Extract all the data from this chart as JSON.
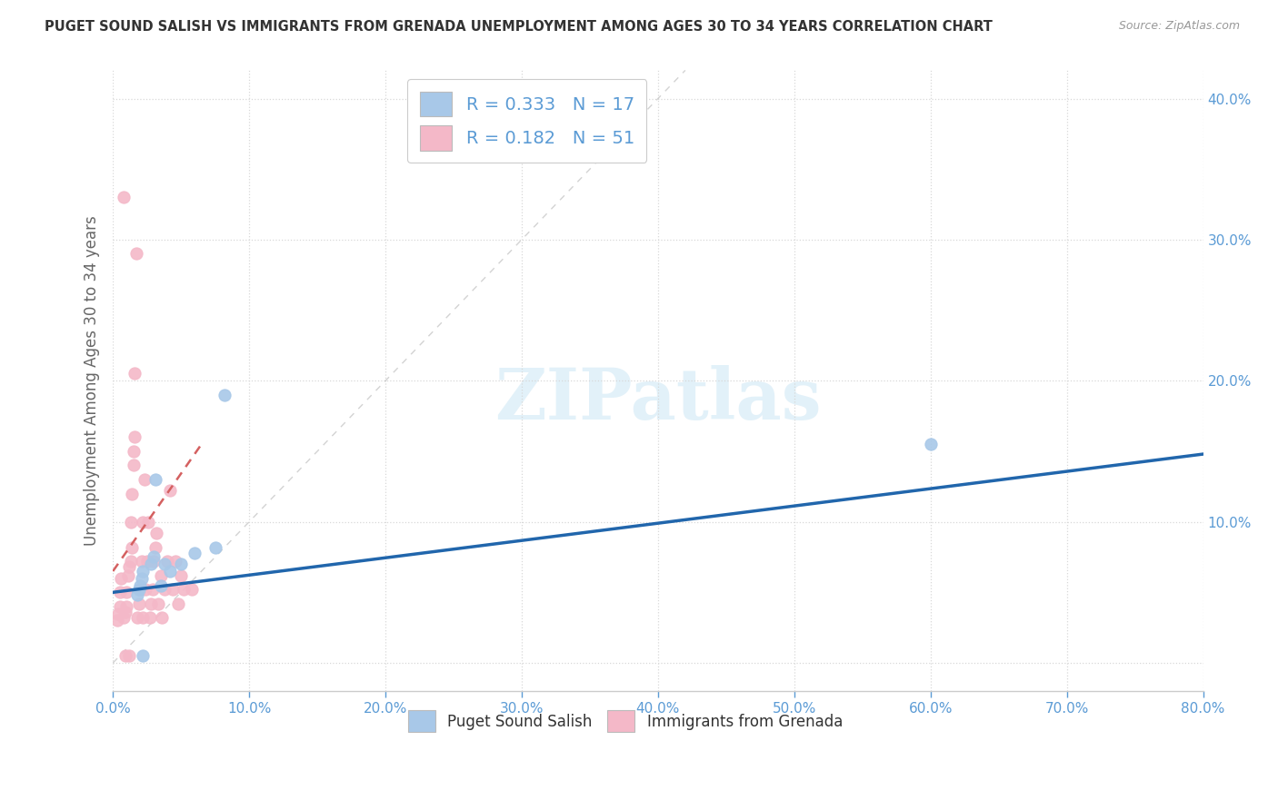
{
  "title": "PUGET SOUND SALISH VS IMMIGRANTS FROM GRENADA UNEMPLOYMENT AMONG AGES 30 TO 34 YEARS CORRELATION CHART",
  "source": "Source: ZipAtlas.com",
  "ylabel": "Unemployment Among Ages 30 to 34 years",
  "legend_labels": [
    "Puget Sound Salish",
    "Immigrants from Grenada"
  ],
  "legend_r": [
    0.333,
    0.182
  ],
  "legend_n": [
    17,
    51
  ],
  "blue_color": "#a8c8e8",
  "pink_color": "#f4b8c8",
  "blue_scatter_edge": "#a8c8e8",
  "pink_scatter_edge": "#f4b8c8",
  "blue_line_color": "#2166ac",
  "pink_line_color": "#d46060",
  "diag_color": "#c8c8c8",
  "title_color": "#333333",
  "axis_tick_color": "#5b9bd5",
  "legend_text_color": "#5b9bd5",
  "bottom_legend_text_color": "#333333",
  "watermark_color": "#d0e8f5",
  "watermark": "ZIPatlas",
  "xlim": [
    0.0,
    0.8
  ],
  "ylim": [
    -0.02,
    0.42
  ],
  "xticks": [
    0.0,
    0.1,
    0.2,
    0.3,
    0.4,
    0.5,
    0.6,
    0.7,
    0.8
  ],
  "yticks": [
    0.0,
    0.1,
    0.2,
    0.3,
    0.4
  ],
  "blue_scatter_x": [
    0.018,
    0.019,
    0.02,
    0.021,
    0.022,
    0.028,
    0.03,
    0.031,
    0.035,
    0.038,
    0.042,
    0.05,
    0.06,
    0.075,
    0.082,
    0.6,
    0.022
  ],
  "blue_scatter_y": [
    0.048,
    0.052,
    0.055,
    0.06,
    0.065,
    0.07,
    0.075,
    0.13,
    0.055,
    0.07,
    0.065,
    0.07,
    0.078,
    0.082,
    0.19,
    0.155,
    0.005
  ],
  "pink_scatter_x": [
    0.003,
    0.004,
    0.005,
    0.005,
    0.006,
    0.008,
    0.009,
    0.01,
    0.01,
    0.011,
    0.012,
    0.013,
    0.014,
    0.013,
    0.014,
    0.015,
    0.015,
    0.016,
    0.016,
    0.017,
    0.018,
    0.019,
    0.02,
    0.021,
    0.022,
    0.023,
    0.022,
    0.024,
    0.025,
    0.026,
    0.027,
    0.028,
    0.029,
    0.03,
    0.031,
    0.032,
    0.033,
    0.035,
    0.036,
    0.038,
    0.04,
    0.042,
    0.044,
    0.046,
    0.048,
    0.05,
    0.052,
    0.058,
    0.008,
    0.009,
    0.012
  ],
  "pink_scatter_y": [
    0.03,
    0.035,
    0.04,
    0.05,
    0.06,
    0.032,
    0.036,
    0.04,
    0.05,
    0.062,
    0.068,
    0.072,
    0.082,
    0.1,
    0.12,
    0.14,
    0.15,
    0.16,
    0.205,
    0.29,
    0.032,
    0.042,
    0.052,
    0.072,
    0.1,
    0.13,
    0.032,
    0.052,
    0.072,
    0.1,
    0.032,
    0.042,
    0.052,
    0.072,
    0.082,
    0.092,
    0.042,
    0.062,
    0.032,
    0.052,
    0.072,
    0.122,
    0.052,
    0.072,
    0.042,
    0.062,
    0.052,
    0.052,
    0.33,
    0.005,
    0.005
  ],
  "blue_trend_x": [
    0.0,
    0.8
  ],
  "blue_trend_y": [
    0.05,
    0.148
  ],
  "pink_trend_x": [
    0.0,
    0.065
  ],
  "pink_trend_y": [
    0.065,
    0.155
  ],
  "diag_line_x": [
    0.0,
    0.42
  ],
  "diag_line_y": [
    0.0,
    0.42
  ],
  "background_color": "#ffffff",
  "grid_color": "#d8d8d8",
  "spine_color": "#cccccc"
}
